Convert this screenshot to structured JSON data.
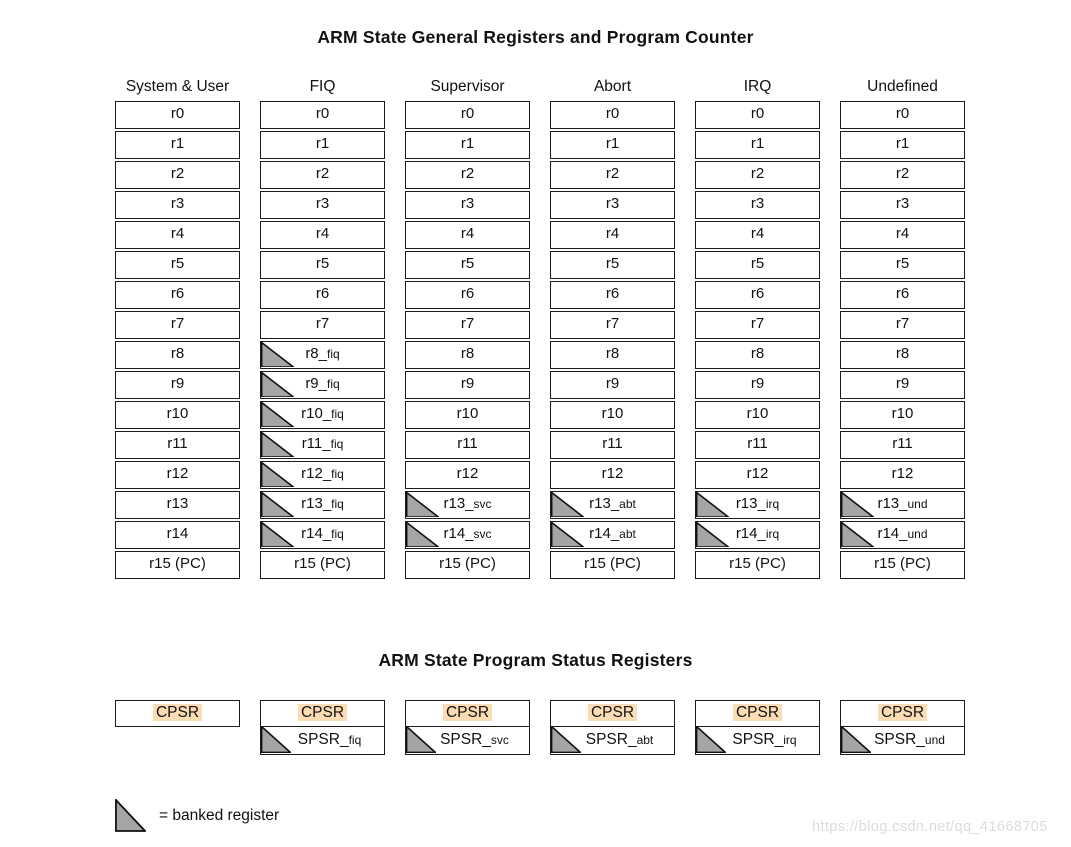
{
  "colors": {
    "cell_border": "#1b1b1b",
    "triangle_fill": "#a5a5a5",
    "cpsr_highlight": "#fbdcb4",
    "watermark_text": "#dcdcdc"
  },
  "general_registers": {
    "title": "ARM State General Registers and Program Counter",
    "columns": [
      {
        "header": "System & User",
        "cells": [
          {
            "label": "r0",
            "suffix": "",
            "banked": false
          },
          {
            "label": "r1",
            "suffix": "",
            "banked": false
          },
          {
            "label": "r2",
            "suffix": "",
            "banked": false
          },
          {
            "label": "r3",
            "suffix": "",
            "banked": false
          },
          {
            "label": "r4",
            "suffix": "",
            "banked": false
          },
          {
            "label": "r5",
            "suffix": "",
            "banked": false
          },
          {
            "label": "r6",
            "suffix": "",
            "banked": false
          },
          {
            "label": "r7",
            "suffix": "",
            "banked": false
          },
          {
            "label": "r8",
            "suffix": "",
            "banked": false
          },
          {
            "label": "r9",
            "suffix": "",
            "banked": false
          },
          {
            "label": "r10",
            "suffix": "",
            "banked": false
          },
          {
            "label": "r11",
            "suffix": "",
            "banked": false
          },
          {
            "label": "r12",
            "suffix": "",
            "banked": false
          },
          {
            "label": "r13",
            "suffix": "",
            "banked": false
          },
          {
            "label": "r14",
            "suffix": "",
            "banked": false
          },
          {
            "label": "r15 (PC)",
            "suffix": "",
            "banked": false
          }
        ]
      },
      {
        "header": "FIQ",
        "cells": [
          {
            "label": "r0",
            "suffix": "",
            "banked": false
          },
          {
            "label": "r1",
            "suffix": "",
            "banked": false
          },
          {
            "label": "r2",
            "suffix": "",
            "banked": false
          },
          {
            "label": "r3",
            "suffix": "",
            "banked": false
          },
          {
            "label": "r4",
            "suffix": "",
            "banked": false
          },
          {
            "label": "r5",
            "suffix": "",
            "banked": false
          },
          {
            "label": "r6",
            "suffix": "",
            "banked": false
          },
          {
            "label": "r7",
            "suffix": "",
            "banked": false
          },
          {
            "label": "r8_",
            "suffix": "fiq",
            "banked": true
          },
          {
            "label": "r9_",
            "suffix": "fiq",
            "banked": true
          },
          {
            "label": "r10_",
            "suffix": "fiq",
            "banked": true
          },
          {
            "label": "r11_",
            "suffix": "fiq",
            "banked": true
          },
          {
            "label": "r12_",
            "suffix": "fiq",
            "banked": true
          },
          {
            "label": "r13_",
            "suffix": "fiq",
            "banked": true
          },
          {
            "label": "r14_",
            "suffix": "fiq",
            "banked": true
          },
          {
            "label": "r15 (PC)",
            "suffix": "",
            "banked": false
          }
        ]
      },
      {
        "header": "Supervisor",
        "cells": [
          {
            "label": "r0",
            "suffix": "",
            "banked": false
          },
          {
            "label": "r1",
            "suffix": "",
            "banked": false
          },
          {
            "label": "r2",
            "suffix": "",
            "banked": false
          },
          {
            "label": "r3",
            "suffix": "",
            "banked": false
          },
          {
            "label": "r4",
            "suffix": "",
            "banked": false
          },
          {
            "label": "r5",
            "suffix": "",
            "banked": false
          },
          {
            "label": "r6",
            "suffix": "",
            "banked": false
          },
          {
            "label": "r7",
            "suffix": "",
            "banked": false
          },
          {
            "label": "r8",
            "suffix": "",
            "banked": false
          },
          {
            "label": "r9",
            "suffix": "",
            "banked": false
          },
          {
            "label": "r10",
            "suffix": "",
            "banked": false
          },
          {
            "label": "r11",
            "suffix": "",
            "banked": false
          },
          {
            "label": "r12",
            "suffix": "",
            "banked": false
          },
          {
            "label": "r13_",
            "suffix": "svc",
            "banked": true
          },
          {
            "label": "r14_",
            "suffix": "svc",
            "banked": true
          },
          {
            "label": "r15 (PC)",
            "suffix": "",
            "banked": false
          }
        ]
      },
      {
        "header": "Abort",
        "cells": [
          {
            "label": "r0",
            "suffix": "",
            "banked": false
          },
          {
            "label": "r1",
            "suffix": "",
            "banked": false
          },
          {
            "label": "r2",
            "suffix": "",
            "banked": false
          },
          {
            "label": "r3",
            "suffix": "",
            "banked": false
          },
          {
            "label": "r4",
            "suffix": "",
            "banked": false
          },
          {
            "label": "r5",
            "suffix": "",
            "banked": false
          },
          {
            "label": "r6",
            "suffix": "",
            "banked": false
          },
          {
            "label": "r7",
            "suffix": "",
            "banked": false
          },
          {
            "label": "r8",
            "suffix": "",
            "banked": false
          },
          {
            "label": "r9",
            "suffix": "",
            "banked": false
          },
          {
            "label": "r10",
            "suffix": "",
            "banked": false
          },
          {
            "label": "r11",
            "suffix": "",
            "banked": false
          },
          {
            "label": "r12",
            "suffix": "",
            "banked": false
          },
          {
            "label": "r13_",
            "suffix": "abt",
            "banked": true
          },
          {
            "label": "r14_",
            "suffix": "abt",
            "banked": true
          },
          {
            "label": "r15 (PC)",
            "suffix": "",
            "banked": false
          }
        ]
      },
      {
        "header": "IRQ",
        "cells": [
          {
            "label": "r0",
            "suffix": "",
            "banked": false
          },
          {
            "label": "r1",
            "suffix": "",
            "banked": false
          },
          {
            "label": "r2",
            "suffix": "",
            "banked": false
          },
          {
            "label": "r3",
            "suffix": "",
            "banked": false
          },
          {
            "label": "r4",
            "suffix": "",
            "banked": false
          },
          {
            "label": "r5",
            "suffix": "",
            "banked": false
          },
          {
            "label": "r6",
            "suffix": "",
            "banked": false
          },
          {
            "label": "r7",
            "suffix": "",
            "banked": false
          },
          {
            "label": "r8",
            "suffix": "",
            "banked": false
          },
          {
            "label": "r9",
            "suffix": "",
            "banked": false
          },
          {
            "label": "r10",
            "suffix": "",
            "banked": false
          },
          {
            "label": "r11",
            "suffix": "",
            "banked": false
          },
          {
            "label": "r12",
            "suffix": "",
            "banked": false
          },
          {
            "label": "r13_",
            "suffix": "irq",
            "banked": true
          },
          {
            "label": "r14_",
            "suffix": "irq",
            "banked": true
          },
          {
            "label": "r15 (PC)",
            "suffix": "",
            "banked": false
          }
        ]
      },
      {
        "header": "Undefined",
        "cells": [
          {
            "label": "r0",
            "suffix": "",
            "banked": false
          },
          {
            "label": "r1",
            "suffix": "",
            "banked": false
          },
          {
            "label": "r2",
            "suffix": "",
            "banked": false
          },
          {
            "label": "r3",
            "suffix": "",
            "banked": false
          },
          {
            "label": "r4",
            "suffix": "",
            "banked": false
          },
          {
            "label": "r5",
            "suffix": "",
            "banked": false
          },
          {
            "label": "r6",
            "suffix": "",
            "banked": false
          },
          {
            "label": "r7",
            "suffix": "",
            "banked": false
          },
          {
            "label": "r8",
            "suffix": "",
            "banked": false
          },
          {
            "label": "r9",
            "suffix": "",
            "banked": false
          },
          {
            "label": "r10",
            "suffix": "",
            "banked": false
          },
          {
            "label": "r11",
            "suffix": "",
            "banked": false
          },
          {
            "label": "r12",
            "suffix": "",
            "banked": false
          },
          {
            "label": "r13_",
            "suffix": "und",
            "banked": true
          },
          {
            "label": "r14_",
            "suffix": "und",
            "banked": true
          },
          {
            "label": "r15 (PC)",
            "suffix": "",
            "banked": false
          }
        ]
      }
    ]
  },
  "status_registers": {
    "title": "ARM State Program Status Registers",
    "columns": [
      {
        "cpsr": "CPSR",
        "spsr": null
      },
      {
        "cpsr": "CPSR",
        "spsr": {
          "label": "SPSR_",
          "suffix": "fiq"
        }
      },
      {
        "cpsr": "CPSR",
        "spsr": {
          "label": "SPSR_",
          "suffix": "svc"
        }
      },
      {
        "cpsr": "CPSR",
        "spsr": {
          "label": "SPSR_",
          "suffix": "abt"
        }
      },
      {
        "cpsr": "CPSR",
        "spsr": {
          "label": "SPSR_",
          "suffix": "irq"
        }
      },
      {
        "cpsr": "CPSR",
        "spsr": {
          "label": "SPSR_",
          "suffix": "und"
        }
      }
    ]
  },
  "legend": {
    "label": "= banked register"
  },
  "watermark": "https://blog.csdn.net/qq_41668705"
}
